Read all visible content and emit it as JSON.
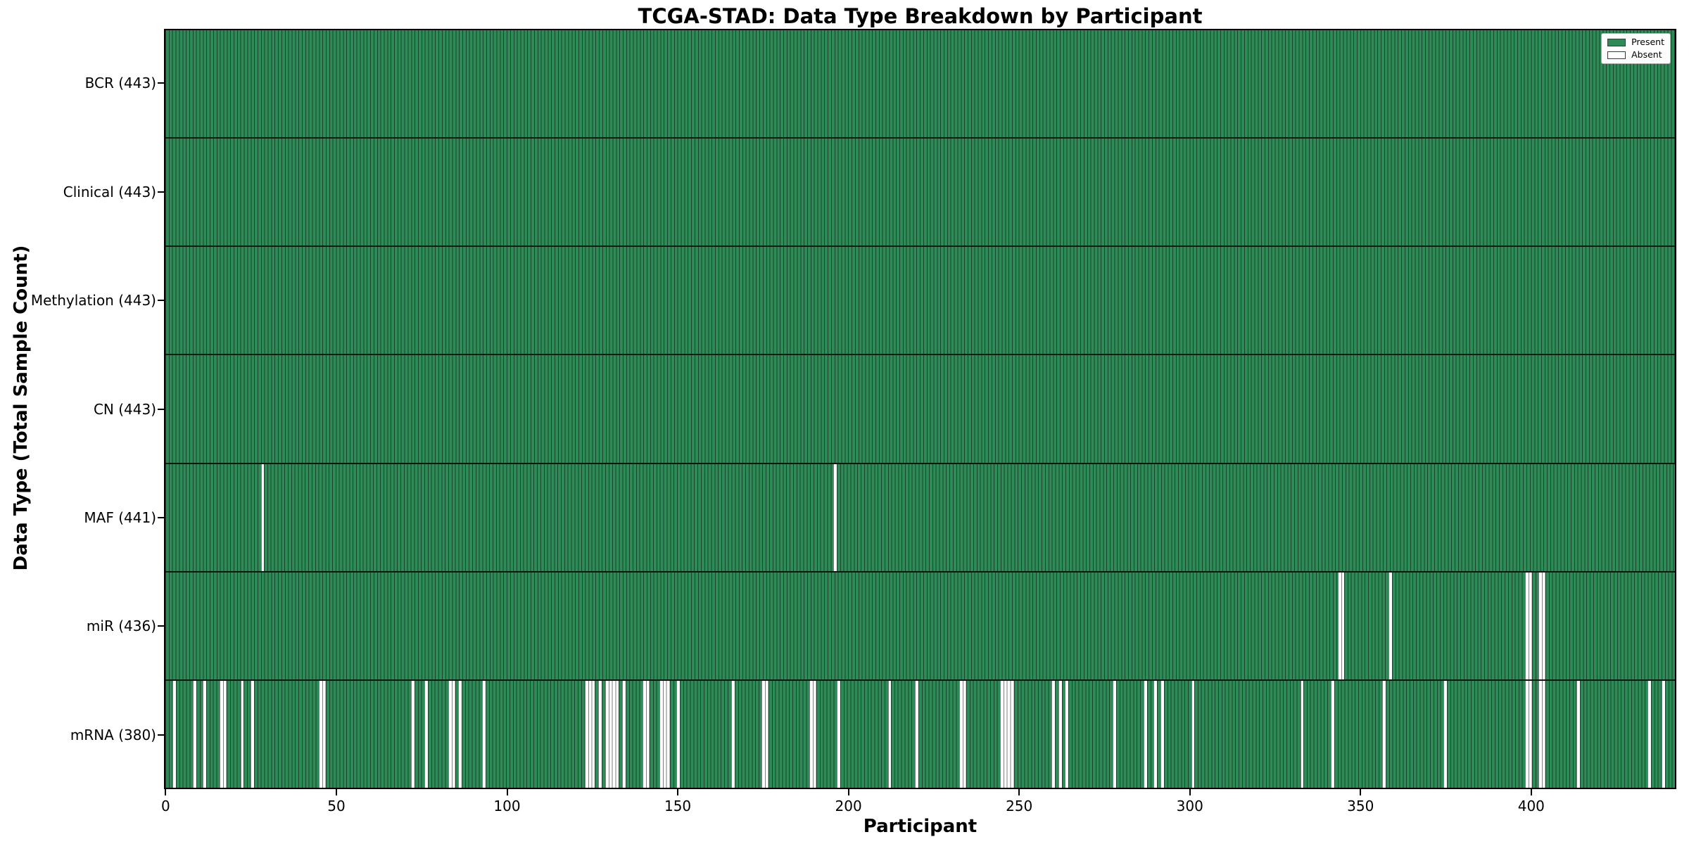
{
  "chart_data": {
    "type": "heatmap",
    "title": "TCGA-STAD: Data Type Breakdown by Participant",
    "xlabel": "Participant",
    "ylabel": "Data Type (Total Sample Count)",
    "n_participants": 443,
    "x_ticks": [
      0,
      50,
      100,
      150,
      200,
      250,
      300,
      350,
      400
    ],
    "grid": false,
    "legend_position": "upper right",
    "colors": {
      "present": "#2e8b57",
      "absent": "#ffffff",
      "bar_edge": "#1a4e33",
      "separator": "#101810"
    },
    "legend": {
      "entries": [
        {
          "label": "Present",
          "color": "#2e8b57"
        },
        {
          "label": "Absent",
          "color": "#ffffff"
        }
      ]
    },
    "rows": [
      {
        "name": "BCR",
        "label": "BCR (443)",
        "count": 443,
        "absent": []
      },
      {
        "name": "Clinical",
        "label": "Clinical (443)",
        "count": 443,
        "absent": []
      },
      {
        "name": "Methylation",
        "label": "Methylation (443)",
        "count": 443,
        "absent": []
      },
      {
        "name": "CN",
        "label": "CN (443)",
        "count": 443,
        "absent": []
      },
      {
        "name": "MAF",
        "label": "MAF (441)",
        "count": 441,
        "absent": [
          28,
          196
        ]
      },
      {
        "name": "miR",
        "label": "miR (436)",
        "count": 436,
        "absent": [
          344,
          345,
          359,
          399,
          400,
          403,
          404
        ]
      },
      {
        "name": "mRNA",
        "label": "mRNA (380)",
        "count": 380,
        "absent": [
          2,
          8,
          11,
          16,
          17,
          22,
          25,
          45,
          46,
          72,
          76,
          83,
          84,
          86,
          93,
          123,
          124,
          125,
          127,
          129,
          130,
          131,
          132,
          134,
          140,
          141,
          145,
          146,
          147,
          150,
          166,
          175,
          176,
          189,
          190,
          197,
          212,
          220,
          233,
          234,
          245,
          246,
          247,
          248,
          260,
          262,
          264,
          278,
          287,
          290,
          292,
          301,
          333,
          342,
          357,
          375,
          399,
          400,
          403,
          404,
          414,
          435,
          439
        ]
      }
    ]
  }
}
